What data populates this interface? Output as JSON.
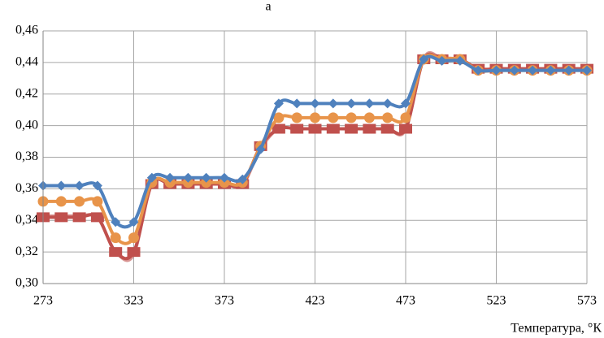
{
  "chart_data": {
    "type": "line",
    "title": "a",
    "x_label": "Температура, °К",
    "x": [
      273,
      283,
      293,
      303,
      313,
      323,
      333,
      343,
      353,
      363,
      373,
      383,
      393,
      403,
      413,
      423,
      433,
      443,
      453,
      463,
      473,
      483,
      493,
      503,
      513,
      523,
      533,
      543,
      553,
      563,
      573
    ],
    "series": [
      {
        "color": "#d99694",
        "marker": "none",
        "values": [
          0.343,
          0.343,
          0.343,
          0.342,
          0.32,
          0.318,
          0.363,
          0.363,
          0.363,
          0.363,
          0.363,
          0.362,
          0.385,
          0.398,
          0.398,
          0.398,
          0.398,
          0.398,
          0.398,
          0.398,
          0.397,
          0.443,
          0.443,
          0.442,
          0.436,
          0.436,
          0.436,
          0.436,
          0.436,
          0.436,
          0.436
        ]
      },
      {
        "color": "#c0504d",
        "marker": "square",
        "values": [
          0.342,
          0.342,
          0.342,
          0.342,
          0.32,
          0.32,
          0.363,
          0.363,
          0.363,
          0.363,
          0.363,
          0.363,
          0.387,
          0.398,
          0.398,
          0.398,
          0.398,
          0.398,
          0.398,
          0.398,
          0.398,
          0.442,
          0.442,
          0.442,
          0.436,
          0.436,
          0.436,
          0.436,
          0.436,
          0.436,
          0.436
        ]
      },
      {
        "color": "#e8944a",
        "marker": "circle",
        "values": [
          0.352,
          0.352,
          0.352,
          0.352,
          0.329,
          0.329,
          0.364,
          0.364,
          0.364,
          0.364,
          0.364,
          0.364,
          0.387,
          0.405,
          0.405,
          0.405,
          0.405,
          0.405,
          0.405,
          0.405,
          0.405,
          0.442,
          0.442,
          0.442,
          0.435,
          0.435,
          0.435,
          0.435,
          0.435,
          0.435,
          0.435
        ]
      },
      {
        "color": "#4f81bd",
        "marker": "diamond",
        "values": [
          0.362,
          0.362,
          0.362,
          0.362,
          0.339,
          0.339,
          0.367,
          0.367,
          0.367,
          0.367,
          0.367,
          0.366,
          0.385,
          0.414,
          0.414,
          0.414,
          0.414,
          0.414,
          0.414,
          0.414,
          0.414,
          0.442,
          0.441,
          0.441,
          0.435,
          0.435,
          0.435,
          0.435,
          0.435,
          0.435,
          0.435
        ]
      }
    ],
    "xlim": [
      273,
      573
    ],
    "xticks": [
      273,
      323,
      373,
      423,
      473,
      523,
      573
    ],
    "ylim": [
      0.3,
      0.46
    ],
    "yticks": [
      {
        "value": 0.3,
        "label": "0,30"
      },
      {
        "value": 0.32,
        "label": "0,32"
      },
      {
        "value": 0.34,
        "label": "0,34"
      },
      {
        "value": 0.36,
        "label": "0,36"
      },
      {
        "value": 0.38,
        "label": "0,38"
      },
      {
        "value": 0.4,
        "label": "0,40"
      },
      {
        "value": 0.42,
        "label": "0,42"
      },
      {
        "value": 0.44,
        "label": "0,44"
      },
      {
        "value": 0.46,
        "label": "0,46"
      }
    ],
    "grid": true
  }
}
